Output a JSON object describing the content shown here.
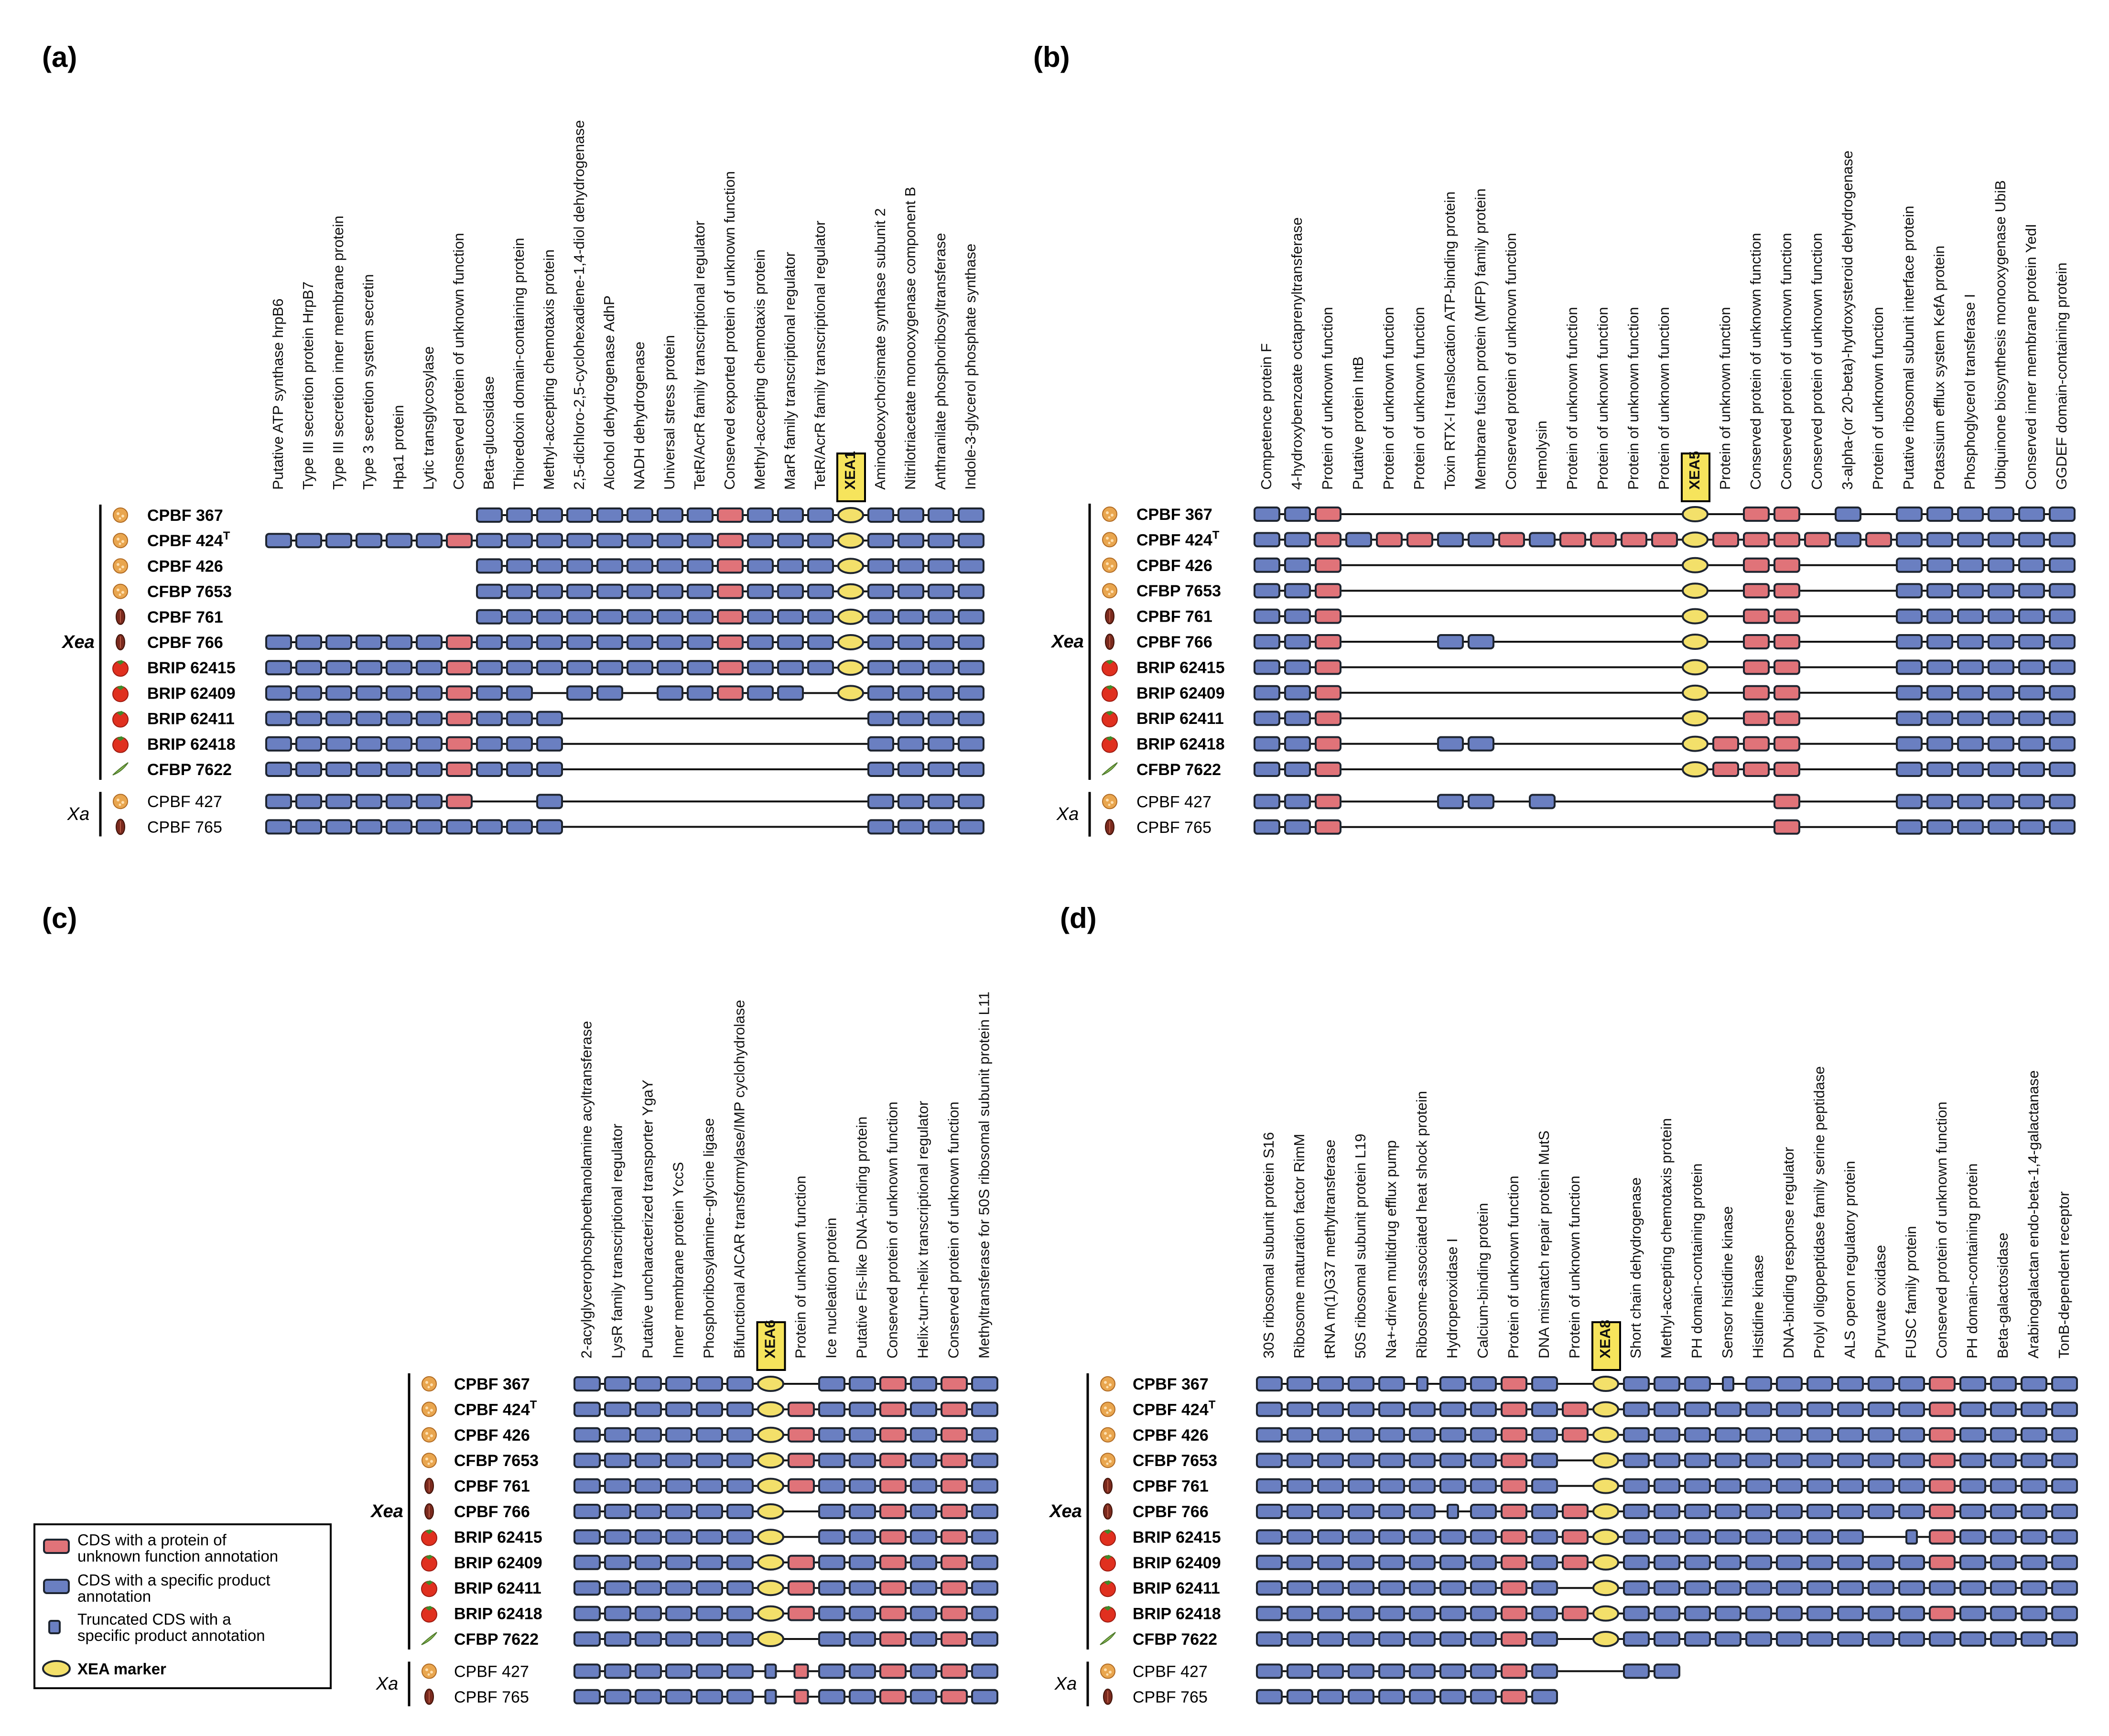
{
  "colors": {
    "specific": "#6a7fc1",
    "unknown": "#e07379",
    "marker": "#f3e06a",
    "stroke": "#1e2530",
    "line": "#111111",
    "markerbox": "#f6e45c"
  },
  "legend": {
    "unknown_l1": "CDS with a protein of",
    "unknown_l2": "unknown function annotation",
    "specific_l1": "CDS with a specific product",
    "specific_l2": "annotation",
    "trunc_l1": "Truncated CDS with a",
    "trunc_l2": "specific product annotation",
    "marker": "XEA marker"
  },
  "panels": [
    {
      "id": "a",
      "label": "(a)",
      "marker_name": "XEA1",
      "groups": [
        "Xea",
        "Xa"
      ],
      "strains": [
        {
          "name": "CPBF 367",
          "sup": "",
          "host": "bean",
          "bold": true
        },
        {
          "name": "CPBF 424",
          "sup": "T",
          "host": "bean",
          "bold": true
        },
        {
          "name": "CPBF 426",
          "sup": "",
          "host": "bean",
          "bold": true
        },
        {
          "name": "CFBP 7653",
          "sup": "",
          "host": "bean",
          "bold": true
        },
        {
          "name": "CPBF 761",
          "sup": "",
          "host": "seed",
          "bold": true
        },
        {
          "name": "CPBF 766",
          "sup": "",
          "host": "seed",
          "bold": true
        },
        {
          "name": "BRIP 62415",
          "sup": "",
          "host": "tomato",
          "bold": true
        },
        {
          "name": "BRIP 62409",
          "sup": "",
          "host": "tomato",
          "bold": true
        },
        {
          "name": "BRIP 62411",
          "sup": "",
          "host": "tomato",
          "bold": true
        },
        {
          "name": "BRIP 62418",
          "sup": "",
          "host": "tomato",
          "bold": true
        },
        {
          "name": "CFBP 7622",
          "sup": "",
          "host": "leaf",
          "bold": true
        },
        {
          "name": "CPBF 427",
          "sup": "",
          "host": "bean",
          "bold": false
        },
        {
          "name": "CPBF 765",
          "sup": "",
          "host": "seed",
          "bold": false
        }
      ],
      "genes": [
        "Putative ATP synthase hrpB6",
        "Type III secretion protein HrpB7",
        "Type III secretion inner membrane protein",
        "Type 3 secretion system secretin",
        "Hpa1 protein",
        "Lytic transglycosylase",
        "Conserved protein of unknown function",
        "Beta-glucosidase",
        "Thioredoxin domain-containing protein",
        "Methyl-accepting chemotaxis protein",
        "2,5-dichloro-2,5-cyclohexadiene-1,4-diol dehydrogenase",
        "Alcohol dehydrogenase AdhP",
        "NADH dehydrogenase",
        "Universal stress protein",
        "TetR/AcrR family transcriptional regulator",
        "Conserved exported protein of unknown function",
        "Methyl-accepting chemotaxis protein",
        "MarR family transcriptional regulator",
        "TetR/AcrR family transcriptional regulator",
        "XEA1",
        "Aminodeoxychorismate synthase subunit 2",
        "Nitrilotriacetate monooxygenase component B",
        "Anthranilate phosphoribosyltransferase",
        "Indole-3-glycerol phosphate synthase"
      ],
      "rows": [
        "-------BBBBBBBBRBBB*BBBB",
        "BBBBBBRBBBBBBBBRBBB*BBBB",
        "-------BBBBBBBBRBBB*BBBB",
        "-------BBBBBBBBRBBB*BBBB",
        "-------BBBBBBBBRBBB*BBBB",
        "BBBBBBRBBBBBBBBRBBB*BBBB",
        "BBBBBBRBBBBBBBBRBBB*BBBB",
        "BBBBBBRBB-BB-BBRBB-*BBBB",
        "BBBBBBRBBB----------BBBB",
        "BBBBBBRBBB----------BBBB",
        "BBBBBBRBBB----------BBBB",
        "BBBBBBR--B----------BBBB",
        "BBBBBBBBBB----------BBBB"
      ]
    },
    {
      "id": "b",
      "label": "(b)",
      "marker_name": "XEA5",
      "groups": [
        "Xea",
        "Xa"
      ],
      "strains": [
        {
          "name": "CPBF 367",
          "sup": "",
          "host": "bean",
          "bold": true
        },
        {
          "name": "CPBF 424",
          "sup": "T",
          "host": "bean",
          "bold": true
        },
        {
          "name": "CPBF 426",
          "sup": "",
          "host": "bean",
          "bold": true
        },
        {
          "name": "CFBP 7653",
          "sup": "",
          "host": "bean",
          "bold": true
        },
        {
          "name": "CPBF 761",
          "sup": "",
          "host": "seed",
          "bold": true
        },
        {
          "name": "CPBF 766",
          "sup": "",
          "host": "seed",
          "bold": true
        },
        {
          "name": "BRIP 62415",
          "sup": "",
          "host": "tomato",
          "bold": true
        },
        {
          "name": "BRIP 62409",
          "sup": "",
          "host": "tomato",
          "bold": true
        },
        {
          "name": "BRIP 62411",
          "sup": "",
          "host": "tomato",
          "bold": true
        },
        {
          "name": "BRIP 62418",
          "sup": "",
          "host": "tomato",
          "bold": true
        },
        {
          "name": "CFBP 7622",
          "sup": "",
          "host": "leaf",
          "bold": true
        },
        {
          "name": "CPBF 427",
          "sup": "",
          "host": "bean",
          "bold": false
        },
        {
          "name": "CPBF 765",
          "sup": "",
          "host": "seed",
          "bold": false
        }
      ],
      "genes": [
        "Competence protein F",
        "4-hydroxybenzoate octaprenyltransferase",
        "Protein of unknown function",
        "Putative protein IntB",
        "Protein of unknown function",
        "Protein of unknown function",
        "Toxin RTX-I translocation ATP-binding protein",
        "Membrane fusion protein (MFP) family protein",
        "Conserved protein of unknown function",
        "Hemolysin",
        "Protein of unknown function",
        "Protein of unknown function",
        "Protein of unknown function",
        "Protein of unknown function",
        "XEA5",
        "Protein of unknown function",
        "Conserved protein of unknown function",
        "Conserved protein of unknown function",
        "Conserved protein of unknown function",
        "3-alpha-(or 20-beta)-hydroxysteroid dehydrogenase",
        "Protein of unknown function",
        "Putative ribosomal subunit interface protein",
        "Potassium efflux system KefA protein",
        "Phosphoglycerol transferase I",
        "Ubiquinone biosynthesis monooxygenase UbiB",
        "Conserved inner membrane protein YedI",
        "GGDEF domain-containing protein"
      ],
      "rows": [
        "BBR-----------*-RR-B-BBBBBB",
        "BBRBRRBBRBRRRR*RRRRBRBBBBBB",
        "BBR-----------*-RR---BBBBBB",
        "BBR-----------*-RR---BBBBBB",
        "BBR-----------*-RR---BBBBBB",
        "BBR---BB------*-RR---BBBBBB",
        "BBR-----------*-RR---BBBBBB",
        "BBR-----------*-RR---BBBBBB",
        "BBR-----------*-RR---BBBBBB",
        "BBR---BB------*RRR---BBBBBB",
        "BBR-----------*RRR---BBBBBB",
        "BBR---BB-B-------R---BBBBBB",
        "BBR--------------R---BBBBBB"
      ]
    },
    {
      "id": "c",
      "label": "(c)",
      "marker_name": "XEA6",
      "groups": [
        "Xea",
        "Xa"
      ],
      "strains": [
        {
          "name": "CPBF 367",
          "sup": "",
          "host": "bean",
          "bold": true
        },
        {
          "name": "CPBF 424",
          "sup": "T",
          "host": "bean",
          "bold": true
        },
        {
          "name": "CPBF 426",
          "sup": "",
          "host": "bean",
          "bold": true
        },
        {
          "name": "CFBP 7653",
          "sup": "",
          "host": "bean",
          "bold": true
        },
        {
          "name": "CPBF 761",
          "sup": "",
          "host": "seed",
          "bold": true
        },
        {
          "name": "CPBF 766",
          "sup": "",
          "host": "seed",
          "bold": true
        },
        {
          "name": "BRIP 62415",
          "sup": "",
          "host": "tomato",
          "bold": true
        },
        {
          "name": "BRIP 62409",
          "sup": "",
          "host": "tomato",
          "bold": true
        },
        {
          "name": "BRIP 62411",
          "sup": "",
          "host": "tomato",
          "bold": true
        },
        {
          "name": "BRIP 62418",
          "sup": "",
          "host": "tomato",
          "bold": true
        },
        {
          "name": "CFBP 7622",
          "sup": "",
          "host": "leaf",
          "bold": true
        },
        {
          "name": "CPBF 427",
          "sup": "",
          "host": "bean",
          "bold": false
        },
        {
          "name": "CPBF 765",
          "sup": "",
          "host": "seed",
          "bold": false
        }
      ],
      "genes": [
        "2-acylglycerophosphoethanolamine acyltransferase",
        "LysR family transcriptional regulator",
        "Putative uncharacterized transporter YgaY",
        "Inner membrane protein YccS",
        "Phosphoribosylamine--glycine ligase",
        "Bifunctional AICAR transformylase/IMP cyclohydrolase",
        "XEA6",
        "Protein of unknown function",
        "Ice nucleation protein",
        "Putative Fis-like DNA-binding protein",
        "Conserved protein of unknown function",
        "Helix-turn-helix transcriptional regulator",
        "Conserved protein of unknown function",
        "Methyltransferase for 50S ribosomal subunit protein L11"
      ],
      "rows": [
        "BBBBBB*-BBRBRB",
        "BBBBBB*RBBRBRB",
        "BBBBBB*RBBRBRB",
        "BBBBBB*RBBRBRB",
        "BBBBBB*RBBRBRB",
        "BBBBBB*-BBRBRB",
        "BBBBBB*-BBRBRB",
        "BBBBBB*RBBRBRB",
        "BBBBBB*RBBRBRB",
        "BBBBBB*RBBRBRB",
        "BBBBBB*-BBRBRB",
        "BBBBBBtrBBRBRB",
        "BBBBBBtrBBRBRB"
      ]
    },
    {
      "id": "d",
      "label": "(d)",
      "marker_name": "XEA8",
      "groups": [
        "Xea",
        "Xa"
      ],
      "strains": [
        {
          "name": "CPBF 367",
          "sup": "",
          "host": "bean",
          "bold": true
        },
        {
          "name": "CPBF 424",
          "sup": "T",
          "host": "bean",
          "bold": true
        },
        {
          "name": "CPBF 426",
          "sup": "",
          "host": "bean",
          "bold": true
        },
        {
          "name": "CFBP 7653",
          "sup": "",
          "host": "bean",
          "bold": true
        },
        {
          "name": "CPBF 761",
          "sup": "",
          "host": "seed",
          "bold": true
        },
        {
          "name": "CPBF 766",
          "sup": "",
          "host": "seed",
          "bold": true
        },
        {
          "name": "BRIP 62415",
          "sup": "",
          "host": "tomato",
          "bold": true
        },
        {
          "name": "BRIP 62409",
          "sup": "",
          "host": "tomato",
          "bold": true
        },
        {
          "name": "BRIP 62411",
          "sup": "",
          "host": "tomato",
          "bold": true
        },
        {
          "name": "BRIP 62418",
          "sup": "",
          "host": "tomato",
          "bold": true
        },
        {
          "name": "CFBP 7622",
          "sup": "",
          "host": "leaf",
          "bold": true
        },
        {
          "name": "CPBF 427",
          "sup": "",
          "host": "bean",
          "bold": false
        },
        {
          "name": "CPBF 765",
          "sup": "",
          "host": "seed",
          "bold": false
        }
      ],
      "genes": [
        "30S ribosomal subunit protein S16",
        "Ribosome maturation factor RimM",
        "tRNA m(1)G37 methyltransferase",
        "50S ribosomal subunit protein L19",
        "Na+-driven multidrug efflux pump",
        "Ribosome-associated heat shock protein",
        "Hydroperoxidase I",
        "Calcium-binding protein",
        "Protein of unknown function",
        "DNA mismatch repair protein MutS",
        "Protein of unknown function",
        "XEA8",
        "Short chain dehydrogenase",
        "Methyl-accepting chemotaxis protein",
        "PH domain-containing protein",
        "Sensor histidine kinase",
        "Histidine kinase",
        "DNA-binding response regulator",
        "Prolyl oligopeptidase family serine peptidase",
        "ALS operon regulatory protein",
        "Pyruvate oxidase",
        "FUSC family protein",
        "Conserved protein of unknown function",
        "PH domain-containing protein",
        "Beta-galactosidase",
        "Arabinogalactan endo-beta-1,4-galactanase",
        "TonB-dependent receptor"
      ],
      "rows": [
        "BBBBBtBBRB-*BBBtBBBBBBRBBBB",
        "BBBBBBBBRBR*BBBBBBBBBBRBBBB",
        "BBBBBBBBRBR*BBBBBBBBBBRBBBB",
        "BBBBBBBBRB-*BBBBBBBBBBRBBBB",
        "BBBBBBBBRB-*BBBBBBBBBBRBBBB",
        "BBBBBBtBRBR*BBBBBBBBBBRBBBB",
        "BBBBBBBBRBR*BBBBBBBB-tRBBBB",
        "BBBBBBBBRBR*BBBBBBBBBBRBBBB",
        "BBBBBBBBRB-*BBBBBBBBBBBBBBB",
        "BBBBBBBBRBR*BBBBBBBBBBRBBBB",
        "BBBBBBBBRB-*BBBBBBBBBBBBBBB",
        "BBBBBBBBRB--BB-------------",
        "BBBBBBBBRB-----------------"
      ]
    }
  ]
}
